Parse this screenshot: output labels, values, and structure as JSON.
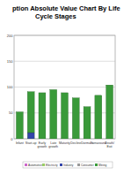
{
  "chart_data": {
    "type": "bar",
    "stacked": true,
    "title": "ption Absolute Value Chart By Life Cycle Stages",
    "categories": [
      "Infant",
      "Start-up",
      "Early growth",
      "Late growth",
      "Maturity",
      "Decline",
      "Dormant",
      "Turnaround",
      "Death/ Exit"
    ],
    "series": [
      {
        "name": "Automotive",
        "color": "#cc66cc",
        "values": [
          0,
          0,
          0,
          0,
          0,
          0,
          0,
          0,
          0
        ]
      },
      {
        "name": "Electricity",
        "color": "#99cc66",
        "values": [
          0,
          0,
          0,
          0,
          0,
          0,
          0,
          0,
          0
        ]
      },
      {
        "name": "Industry",
        "color": "#3344aa",
        "values": [
          0,
          12,
          0,
          0,
          0,
          0,
          0,
          0,
          0
        ]
      },
      {
        "name": "Consumer",
        "color": "#999999",
        "values": [
          0,
          0,
          0,
          0,
          0,
          0,
          0,
          0,
          0
        ]
      },
      {
        "name": "Mining",
        "color": "#3a9a3a",
        "values": [
          52,
          79,
          89,
          95,
          89,
          79,
          62,
          84,
          104
        ]
      }
    ],
    "ylim": [
      0,
      200
    ],
    "yticks": [
      0,
      50,
      100,
      150,
      200
    ],
    "grid": true,
    "legend": "bottom"
  }
}
